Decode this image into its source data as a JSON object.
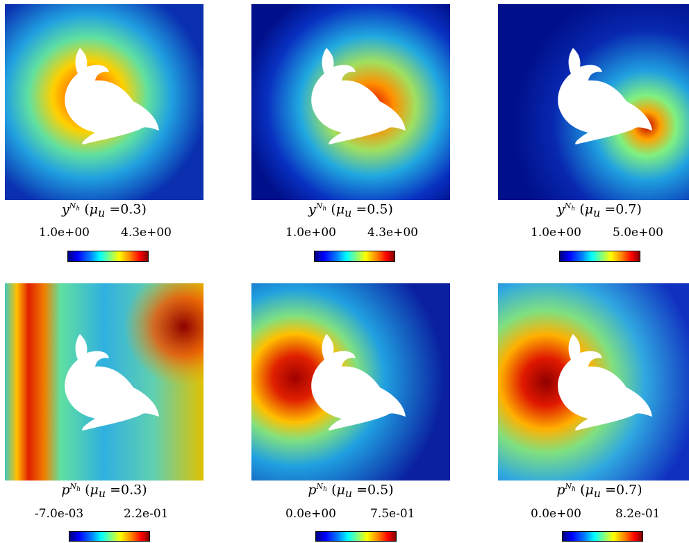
{
  "panels": [
    {
      "id": "y03",
      "var": "y",
      "sup": "N",
      "sub": "h",
      "mu_label": "μ",
      "mu_sub": "u",
      "mu_value": "0.3",
      "min": "1.0e+00",
      "max": "4.3e+00",
      "colors": {
        "field": "#2a6ae0",
        "hot": "#c00000"
      }
    },
    {
      "id": "y05",
      "var": "y",
      "sup": "N",
      "sub": "h",
      "mu_label": "μ",
      "mu_sub": "u",
      "mu_value": "0.5",
      "min": "1.0e+00",
      "max": "4.3e+00",
      "colors": {
        "field": "#0a14b0",
        "hot": "#d01010"
      }
    },
    {
      "id": "y07",
      "var": "y",
      "sup": "N",
      "sub": "h",
      "mu_label": "μ",
      "mu_sub": "u",
      "mu_value": "0.7",
      "min": "1.0e+00",
      "max": "5.0e+00",
      "colors": {
        "field": "#00108a",
        "hot": "#c80000"
      }
    },
    {
      "id": "p03",
      "var": "p",
      "sup": "N",
      "sub": "h",
      "mu_label": "μ",
      "mu_sub": "u",
      "mu_value": "0.3",
      "min": "-7.0e-03",
      "max": "2.2e-01",
      "colors": {
        "field": "#40c0c0",
        "hot": "#c80000"
      }
    },
    {
      "id": "p05",
      "var": "p",
      "sup": "N",
      "sub": "h",
      "mu_label": "μ",
      "mu_sub": "u",
      "mu_value": "0.5",
      "min": "0.0e+00",
      "max": "7.5e-01",
      "colors": {
        "field": "#1040d0",
        "hot": "#c00000"
      }
    },
    {
      "id": "p07",
      "var": "p",
      "sup": "N",
      "sub": "h",
      "mu_label": "μ",
      "mu_sub": "u",
      "mu_value": "0.7",
      "min": "0.0e+00",
      "max": "8.2e-01",
      "colors": {
        "field": "#1a60d8",
        "hot": "#c00000"
      }
    }
  ],
  "colormap": "jet",
  "obstacle": "dolphin"
}
